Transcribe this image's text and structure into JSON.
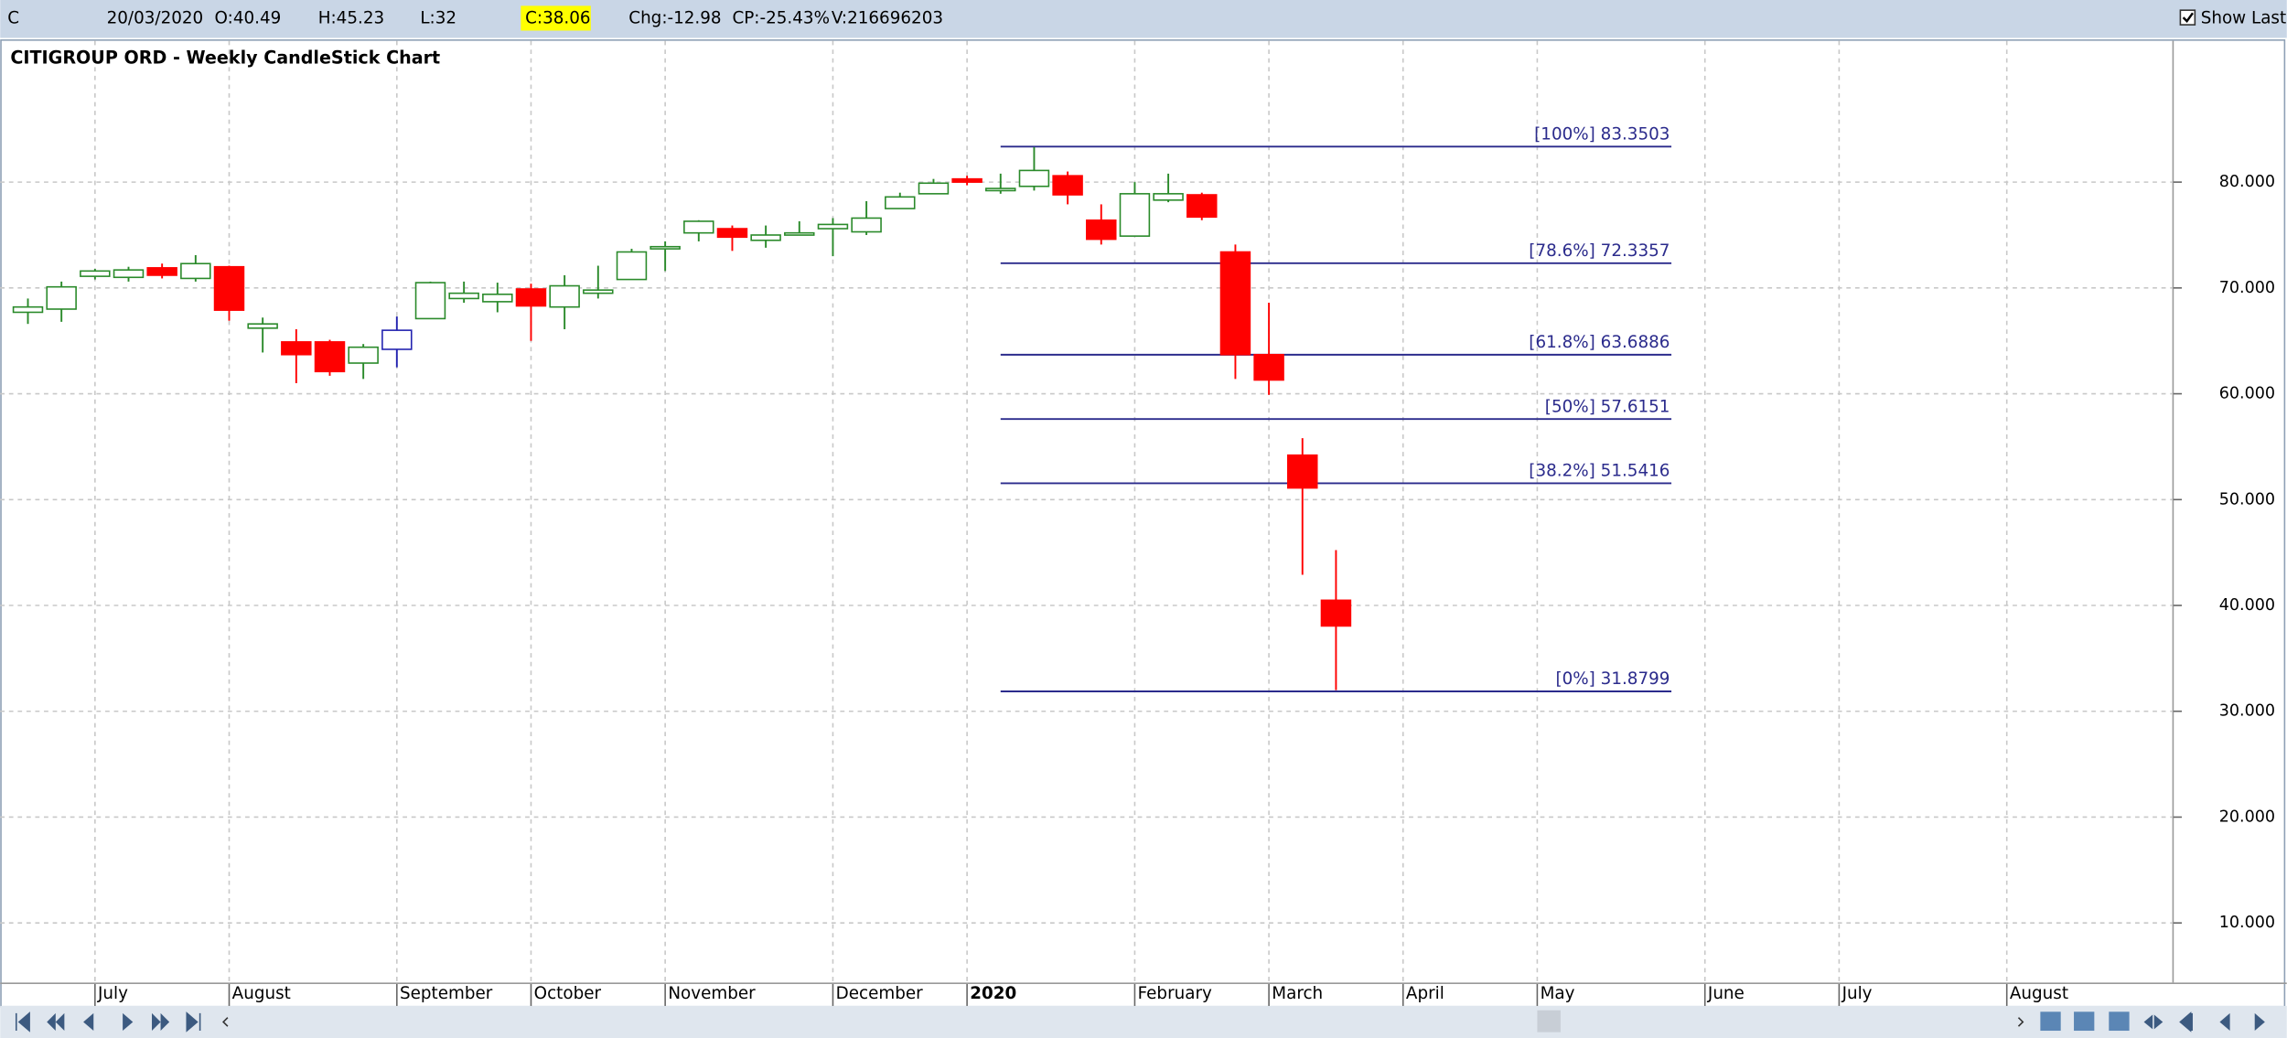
{
  "header": {
    "symbol": "C",
    "date": "20/03/2020",
    "open": "O:40.49",
    "high": "H:45.23",
    "low": "L:32",
    "close": "C:38.06",
    "change": "Chg:-12.98",
    "change_percent": "CP:-25.43%",
    "volume": "V:216696203",
    "show_last": {
      "label": "Show Last",
      "checked": true
    }
  },
  "chart_data": {
    "type": "candlestick",
    "title": "CITIGROUP ORD - Weekly CandleStick Chart",
    "categories": [
      null,
      null,
      "July",
      null,
      null,
      null,
      "August",
      null,
      null,
      null,
      null,
      "September",
      null,
      null,
      null,
      "October",
      null,
      null,
      null,
      "November",
      null,
      null,
      null,
      null,
      "December",
      null,
      null,
      null,
      "2020",
      null,
      null,
      null,
      null,
      "February",
      null,
      null,
      null,
      "March",
      null,
      null,
      null,
      "April",
      null,
      null,
      null,
      "May",
      null,
      null,
      null,
      null,
      "June",
      null,
      null,
      null,
      "July",
      null,
      null,
      null,
      null,
      "August",
      null,
      null,
      null,
      null
    ],
    "open": [
      67.7,
      68.0,
      71.1,
      71.0,
      71.9,
      70.9,
      72.0,
      66.2,
      64.9,
      64.9,
      62.9,
      64.2,
      67.1,
      69.0,
      68.7,
      69.9,
      68.2,
      69.5,
      70.8,
      73.7,
      75.2,
      75.6,
      74.5,
      75.0,
      75.6,
      75.3,
      77.5,
      78.9,
      80.3,
      79.2,
      79.6,
      80.6,
      76.4,
      74.9,
      78.3,
      78.8,
      73.4,
      63.7,
      54.2,
      40.49,
      null,
      null,
      null,
      null,
      null,
      null,
      null,
      null,
      null,
      null,
      null,
      null,
      null,
      null,
      null,
      null,
      null,
      null,
      null,
      null,
      null,
      null,
      null,
      null
    ],
    "high": [
      69.0,
      70.6,
      71.8,
      72.0,
      72.3,
      73.1,
      72.1,
      67.2,
      66.1,
      65.1,
      64.7,
      67.3,
      70.6,
      70.6,
      70.5,
      70.4,
      71.2,
      72.1,
      73.7,
      74.4,
      76.4,
      75.9,
      75.9,
      76.3,
      76.6,
      78.2,
      79.0,
      80.3,
      80.6,
      80.8,
      83.3,
      81.0,
      77.9,
      80.0,
      80.8,
      79.0,
      74.1,
      68.6,
      55.8,
      45.23,
      null,
      null,
      null,
      null,
      null,
      null,
      null,
      null,
      null,
      null,
      null,
      null,
      null,
      null,
      null,
      null,
      null,
      null,
      null,
      null,
      null,
      null,
      null,
      null
    ],
    "low": [
      66.6,
      66.8,
      70.8,
      70.6,
      70.9,
      70.6,
      66.9,
      63.9,
      61.0,
      61.7,
      61.4,
      62.5,
      67.1,
      68.6,
      67.7,
      65.0,
      66.1,
      69.0,
      70.8,
      71.6,
      74.4,
      73.5,
      73.8,
      75.0,
      73.0,
      75.0,
      77.5,
      78.9,
      79.7,
      78.9,
      79.2,
      77.9,
      74.1,
      74.9,
      78.1,
      76.4,
      61.4,
      59.9,
      42.9,
      32,
      null,
      null,
      null,
      null,
      null,
      null,
      null,
      null,
      null,
      null,
      null,
      null,
      null,
      null,
      null,
      null,
      null,
      null,
      null,
      null,
      null,
      null,
      null,
      null
    ],
    "close": [
      68.2,
      70.1,
      71.6,
      71.7,
      71.2,
      72.3,
      67.9,
      66.6,
      63.7,
      62.1,
      64.4,
      66.0,
      70.5,
      69.5,
      69.4,
      68.3,
      70.2,
      69.8,
      73.4,
      73.9,
      76.3,
      74.8,
      75.0,
      75.2,
      76.0,
      76.6,
      78.6,
      79.9,
      80.0,
      79.4,
      81.1,
      78.8,
      74.6,
      78.9,
      78.9,
      76.7,
      63.7,
      61.3,
      51.1,
      38.06,
      null,
      null,
      null,
      null,
      null,
      null,
      null,
      null,
      null,
      null,
      null,
      null,
      null,
      null,
      null,
      null,
      null,
      null,
      null,
      null,
      null,
      null,
      null,
      null
    ],
    "colors": [
      "#2a8a2a",
      "#2a8a2a",
      "#2a8a2a",
      "#2a8a2a",
      "#ff0000",
      "#2a8a2a",
      "#ff0000",
      "#2a8a2a",
      "#ff0000",
      "#ff0000",
      "#2a8a2a",
      "#2323b0",
      "#2a8a2a",
      "#2a8a2a",
      "#2a8a2a",
      "#ff0000",
      "#2a8a2a",
      "#2a8a2a",
      "#2a8a2a",
      "#2a8a2a",
      "#2a8a2a",
      "#ff0000",
      "#2a8a2a",
      "#2a8a2a",
      "#2a8a2a",
      "#2a8a2a",
      "#2a8a2a",
      "#2a8a2a",
      "#ff0000",
      "#2a8a2a",
      "#2a8a2a",
      "#ff0000",
      "#ff0000",
      "#2a8a2a",
      "#2a8a2a",
      "#ff0000",
      "#ff0000",
      "#ff0000",
      "#ff0000",
      "#ff0000",
      null,
      null,
      null,
      null,
      null,
      null,
      null,
      null,
      null,
      null,
      null,
      null,
      null,
      null,
      null,
      null,
      null,
      null,
      null,
      null,
      null,
      null,
      null,
      null
    ],
    "ylim": [
      4.5,
      93.35
    ],
    "yticks": [
      {
        "value": 10,
        "label": "10.000"
      },
      {
        "value": 20,
        "label": "20.000"
      },
      {
        "value": 30,
        "label": "30.000"
      },
      {
        "value": 40,
        "label": "40.000"
      },
      {
        "value": 50,
        "label": "50.000"
      },
      {
        "value": 60,
        "label": "60.000"
      },
      {
        "value": 70,
        "label": "70.000"
      },
      {
        "value": 80,
        "label": "80.000"
      }
    ],
    "grid": true,
    "fib_color": "#2b2b8c",
    "fib_levels": [
      {
        "value": 83.3503,
        "label": "[100%] 83.3503"
      },
      {
        "value": 72.3357,
        "label": "[78.6%] 72.3357"
      },
      {
        "value": 63.6886,
        "label": "[61.8%] 63.6886"
      },
      {
        "value": 57.6151,
        "label": "[50%] 57.6151"
      },
      {
        "value": 51.5416,
        "label": "[38.2%] 51.5416"
      },
      {
        "value": 31.8799,
        "label": "[0%] 31.8799"
      }
    ]
  }
}
